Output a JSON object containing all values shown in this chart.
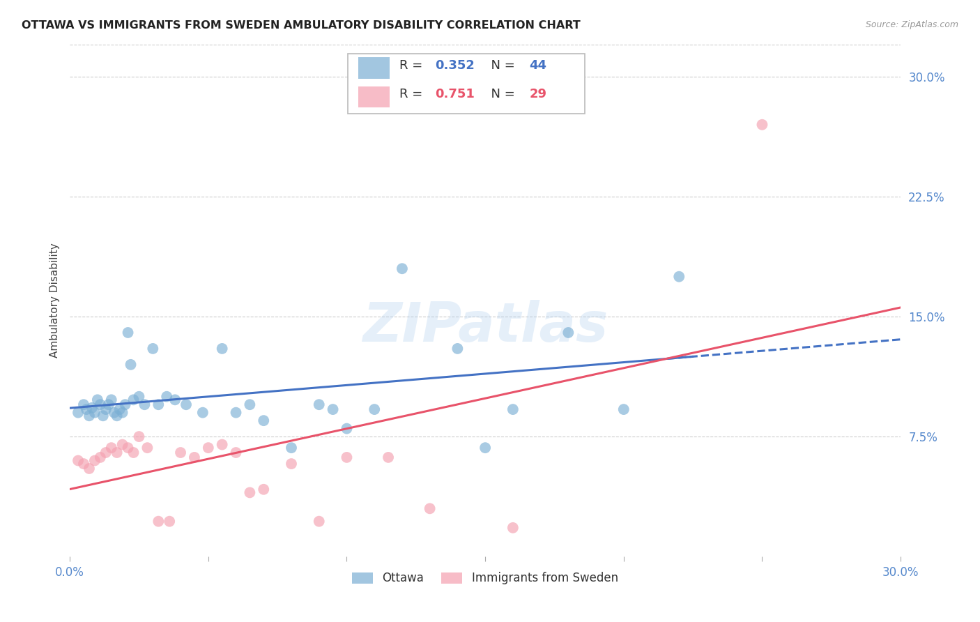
{
  "title": "OTTAWA VS IMMIGRANTS FROM SWEDEN AMBULATORY DISABILITY CORRELATION CHART",
  "source": "Source: ZipAtlas.com",
  "ylabel": "Ambulatory Disability",
  "xlim": [
    0.0,
    0.3
  ],
  "ylim": [
    0.0,
    0.32
  ],
  "yticks": [
    0.075,
    0.15,
    0.225,
    0.3
  ],
  "ytick_labels": [
    "7.5%",
    "15.0%",
    "22.5%",
    "30.0%"
  ],
  "xticks": [
    0.0,
    0.05,
    0.1,
    0.15,
    0.2,
    0.25,
    0.3
  ],
  "xtick_labels": [
    "0.0%",
    "",
    "",
    "",
    "",
    "",
    "30.0%"
  ],
  "ottawa_color": "#7BAFD4",
  "sweden_color": "#F4A0B0",
  "ottawa_line_color": "#4472C4",
  "sweden_line_color": "#E8536A",
  "background_color": "#ffffff",
  "grid_color": "#cccccc",
  "watermark": "ZIPatlas",
  "ottawa_x": [
    0.003,
    0.005,
    0.006,
    0.007,
    0.008,
    0.009,
    0.01,
    0.011,
    0.012,
    0.013,
    0.014,
    0.015,
    0.016,
    0.017,
    0.018,
    0.019,
    0.02,
    0.021,
    0.022,
    0.023,
    0.025,
    0.027,
    0.03,
    0.032,
    0.035,
    0.038,
    0.042,
    0.048,
    0.055,
    0.06,
    0.065,
    0.07,
    0.08,
    0.09,
    0.095,
    0.1,
    0.11,
    0.12,
    0.14,
    0.15,
    0.16,
    0.18,
    0.2,
    0.22
  ],
  "ottawa_y": [
    0.09,
    0.095,
    0.092,
    0.088,
    0.093,
    0.09,
    0.098,
    0.095,
    0.088,
    0.092,
    0.095,
    0.098,
    0.09,
    0.088,
    0.092,
    0.09,
    0.095,
    0.14,
    0.12,
    0.098,
    0.1,
    0.095,
    0.13,
    0.095,
    0.1,
    0.098,
    0.095,
    0.09,
    0.13,
    0.09,
    0.095,
    0.085,
    0.068,
    0.095,
    0.092,
    0.08,
    0.092,
    0.18,
    0.13,
    0.068,
    0.092,
    0.14,
    0.092,
    0.175
  ],
  "sweden_x": [
    0.003,
    0.005,
    0.007,
    0.009,
    0.011,
    0.013,
    0.015,
    0.017,
    0.019,
    0.021,
    0.023,
    0.025,
    0.028,
    0.032,
    0.036,
    0.04,
    0.045,
    0.05,
    0.055,
    0.06,
    0.065,
    0.07,
    0.08,
    0.09,
    0.1,
    0.115,
    0.13,
    0.16,
    0.25
  ],
  "sweden_y": [
    0.06,
    0.058,
    0.055,
    0.06,
    0.062,
    0.065,
    0.068,
    0.065,
    0.07,
    0.068,
    0.065,
    0.075,
    0.068,
    0.022,
    0.022,
    0.065,
    0.062,
    0.068,
    0.07,
    0.065,
    0.04,
    0.042,
    0.058,
    0.022,
    0.062,
    0.062,
    0.03,
    0.018,
    0.27
  ]
}
